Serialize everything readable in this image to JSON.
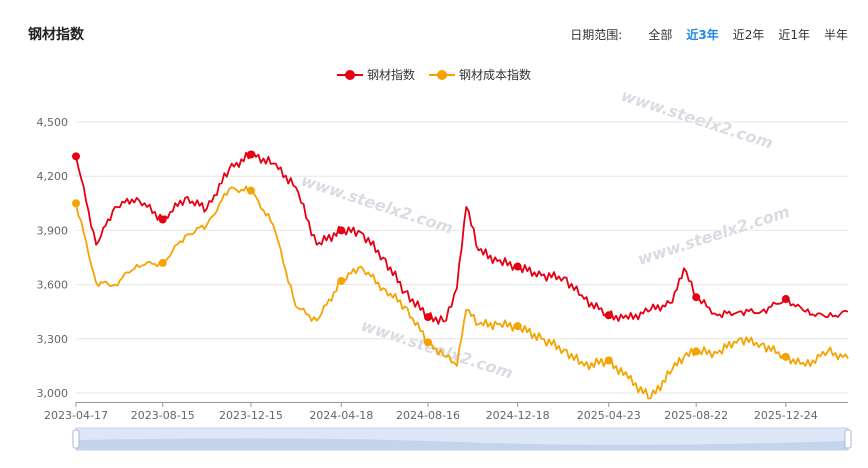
{
  "header": {
    "title": "钢材指数",
    "range_label": "日期范围:",
    "range_options": [
      "全部",
      "近3年",
      "近2年",
      "近1年",
      "半年"
    ],
    "range_active": 1
  },
  "colors": {
    "steel": "#e60012",
    "cost": "#f5a300",
    "accent": "#1e88e5"
  },
  "chart_data": {
    "type": "line",
    "title": "",
    "xlabel": "",
    "ylabel": "",
    "ylim": [
      2950,
      4500
    ],
    "yticks": [
      "4,500",
      "4,200",
      "3,900",
      "3,600",
      "3,300",
      "3,000"
    ],
    "xticks": [
      "2023-04-17",
      "2023-08-15",
      "2023-12-15",
      "2024-04-18",
      "2024-08-16",
      "2024-12-18",
      "2025-04-23",
      "2025-08-22",
      "2025-12-24"
    ],
    "grid": true,
    "legend": "top-center",
    "x": [
      "2023-04-17",
      "2023-05-15",
      "2023-06-10",
      "2023-07-10",
      "2023-08-15",
      "2023-09-15",
      "2023-10-15",
      "2023-11-15",
      "2023-12-15",
      "2024-01-15",
      "2024-02-15",
      "2024-03-15",
      "2024-04-18",
      "2024-05-15",
      "2024-06-15",
      "2024-07-15",
      "2024-08-16",
      "2024-09-10",
      "2024-09-25",
      "2024-10-08",
      "2024-10-25",
      "2024-11-20",
      "2024-12-18",
      "2025-01-20",
      "2025-02-20",
      "2025-03-20",
      "2025-04-23",
      "2025-05-20",
      "2025-06-20",
      "2025-07-20",
      "2025-08-05",
      "2025-08-22",
      "2025-09-20",
      "2025-10-20",
      "2025-11-20",
      "2025-12-24",
      "2026-01-20",
      "2026-02-20",
      "2026-03-20"
    ],
    "series": [
      {
        "name": "钢材指数",
        "values": [
          4310,
          3820,
          4030,
          4080,
          3960,
          4080,
          4020,
          4240,
          4320,
          4270,
          4140,
          3820,
          3900,
          3890,
          3750,
          3560,
          3420,
          3400,
          3580,
          4030,
          3790,
          3730,
          3700,
          3650,
          3640,
          3520,
          3430,
          3410,
          3460,
          3500,
          3690,
          3530,
          3430,
          3450,
          3450,
          3520,
          3450,
          3420,
          3450
        ]
      },
      {
        "name": "钢材成本指数",
        "values": [
          4050,
          3610,
          3600,
          3710,
          3720,
          3870,
          3930,
          4130,
          4120,
          3930,
          3480,
          3400,
          3620,
          3700,
          3580,
          3480,
          3280,
          3200,
          3150,
          3460,
          3380,
          3380,
          3370,
          3300,
          3240,
          3150,
          3180,
          3080,
          2970,
          3130,
          3200,
          3230,
          3220,
          3300,
          3270,
          3200,
          3150,
          3230,
          3190
        ]
      }
    ],
    "markers": [
      0,
      4,
      8,
      12,
      16,
      22,
      26,
      31,
      35
    ]
  }
}
